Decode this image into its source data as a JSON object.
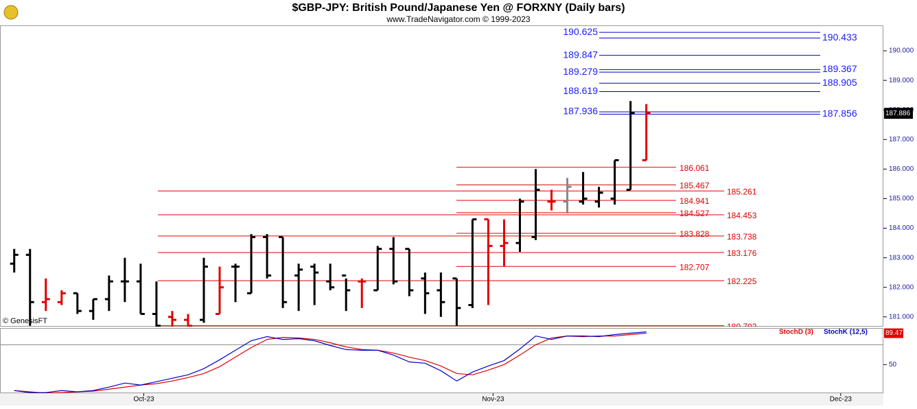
{
  "chart_data": [
    {
      "type": "ohlc",
      "title": "$GBP-JPY:  British Pound/Japanese Yen @ FORXNY  (Daily bars)",
      "subtitle": "www.TradeNavigator.com © 1999-2023",
      "watermark": "© GenesisFT",
      "open": [
        182.8,
        183.1,
        181.5,
        181.5,
        181.8,
        181.2,
        181.6,
        182.2,
        182.2,
        181.1,
        181.0,
        180.9,
        180.9,
        181.1,
        182.7,
        181.8,
        183.7,
        183.7,
        182.4,
        182.7,
        182.2,
        182.4,
        182.2,
        181.9,
        183.3,
        183.3,
        182.3,
        181.9,
        182.3,
        181.4,
        184.3,
        183.4,
        183.5,
        183.7,
        184.9,
        184.9,
        184.9,
        184.9,
        185.0,
        185.3,
        186.3
      ],
      "high": [
        183.3,
        183.3,
        182.3,
        181.9,
        181.8,
        181.6,
        182.4,
        183.0,
        182.8,
        182.2,
        181.2,
        181.1,
        183.0,
        182.7,
        182.8,
        183.8,
        183.8,
        183.7,
        182.8,
        182.8,
        182.8,
        182.3,
        182.3,
        183.4,
        183.7,
        183.3,
        182.5,
        182.5,
        182.3,
        184.3,
        184.3,
        184.3,
        185.0,
        186.0,
        185.3,
        185.7,
        185.9,
        185.4,
        186.3,
        188.3,
        188.2
      ],
      "low": [
        182.5,
        180.7,
        181.2,
        181.4,
        181.1,
        180.9,
        181.2,
        181.5,
        181.1,
        180.6,
        180.6,
        180.6,
        180.8,
        181.1,
        181.5,
        181.8,
        182.3,
        181.3,
        181.2,
        181.4,
        181.9,
        181.2,
        181.3,
        181.9,
        182.1,
        181.7,
        181.1,
        181.0,
        180.7,
        181.3,
        181.4,
        182.7,
        183.2,
        183.6,
        184.6,
        184.5,
        184.8,
        184.7,
        184.8,
        185.3,
        186.3
      ],
      "close": [
        183.1,
        181.5,
        181.6,
        181.8,
        181.2,
        181.6,
        182.2,
        182.2,
        181.1,
        180.7,
        180.9,
        180.7,
        182.7,
        182.0,
        182.7,
        183.7,
        182.4,
        181.5,
        182.6,
        182.5,
        182.0,
        181.9,
        182.2,
        183.3,
        182.2,
        181.9,
        181.8,
        181.5,
        181.3,
        184.3,
        183.4,
        183.5,
        184.9,
        185.3,
        184.9,
        185.4,
        185.0,
        185.2,
        186.3,
        187.9,
        187.886
      ],
      "colors": [
        "#000000",
        "#000000",
        "#e00000",
        "#e00000",
        "#000000",
        "#000000",
        "#000000",
        "#000000",
        "#000000",
        "#000000",
        "#e00000",
        "#e00000",
        "#000000",
        "#e00000",
        "#000000",
        "#000000",
        "#000000",
        "#000000",
        "#000000",
        "#000000",
        "#000000",
        "#000000",
        "#e00000",
        "#000000",
        "#000000",
        "#000000",
        "#000000",
        "#000000",
        "#000000",
        "#000000",
        "#e00000",
        "#e00000",
        "#000000",
        "#000000",
        "#e00000",
        "#888888",
        "#000000",
        "#000000",
        "#000000",
        "#000000",
        "#e00000"
      ],
      "ylim": [
        180.67,
        190.86
      ],
      "yticks": [
        {
          "value": 181,
          "label": "181.000"
        },
        {
          "value": 182,
          "label": "182.000"
        },
        {
          "value": 183,
          "label": "183.000"
        },
        {
          "value": 184,
          "label": "184.000"
        },
        {
          "value": 185,
          "label": "185.000"
        },
        {
          "value": 186,
          "label": "186.000"
        },
        {
          "value": 187,
          "label": "187.000"
        },
        {
          "value": 188,
          "label": "188.000"
        },
        {
          "value": 189,
          "label": "189.000"
        },
        {
          "value": 190,
          "label": "190.000"
        }
      ],
      "xlim": [
        -0.9,
        55
      ],
      "xticks": [
        {
          "value": 8.2,
          "label": "Oct-23"
        },
        {
          "value": 30.3,
          "label": "Nov-23"
        },
        {
          "value": 52.3,
          "label": "Dec-23"
        }
      ],
      "levels": [
        {
          "color": "#0000cc",
          "values": [
            190.625,
            189.847,
            189.279,
            188.619,
            187.936
          ]
        },
        {
          "color": "#0000cc",
          "values": [
            190.433,
            189.367,
            188.905,
            187.856
          ]
        },
        {
          "color": "#e00000",
          "values": [
            186.061,
            185.467,
            184.941,
            184.527,
            183.828,
            182.707
          ]
        },
        {
          "color": "#e00000",
          "values": [
            185.261,
            184.453,
            183.738,
            183.176,
            182.225,
            180.702
          ]
        }
      ]
    },
    {
      "type": "line",
      "series": [
        {
          "name": "StochD (3)",
          "color": "#e00000",
          "values": [
            17.4,
            15.7,
            14.1,
            14.8,
            15.7,
            16.6,
            19.1,
            21.7,
            24.3,
            26.0,
            29.4,
            33.7,
            38.8,
            47.4,
            59.4,
            71.5,
            81.7,
            84.3,
            83.5,
            81.7,
            77.4,
            72.3,
            68.9,
            68.0,
            64.6,
            59.4,
            55.1,
            48.3,
            38.8,
            37.1,
            43.1,
            50.0,
            62.0,
            74.9,
            83.5,
            86.0,
            85.2,
            86.0,
            86.0,
            87.8,
            89.47
          ]
        },
        {
          "name": "StochK (12,5)",
          "color": "#0000cc",
          "values": [
            17.4,
            14.8,
            14.8,
            17.4,
            15.7,
            17.4,
            21.7,
            26.8,
            24.3,
            28.5,
            32.8,
            37.1,
            44.9,
            56.0,
            68.0,
            80.0,
            85.2,
            81.7,
            82.6,
            80.0,
            74.0,
            68.9,
            68.0,
            68.0,
            62.0,
            53.4,
            51.7,
            42.3,
            29.4,
            40.6,
            48.3,
            55.1,
            69.7,
            86.0,
            81.7,
            86.0,
            86.0,
            85.2,
            87.8,
            89.5,
            91.2
          ]
        }
      ],
      "ylim": [
        14,
        96
      ],
      "yticks": [
        50
      ],
      "hlines": [
        75
      ]
    }
  ]
}
